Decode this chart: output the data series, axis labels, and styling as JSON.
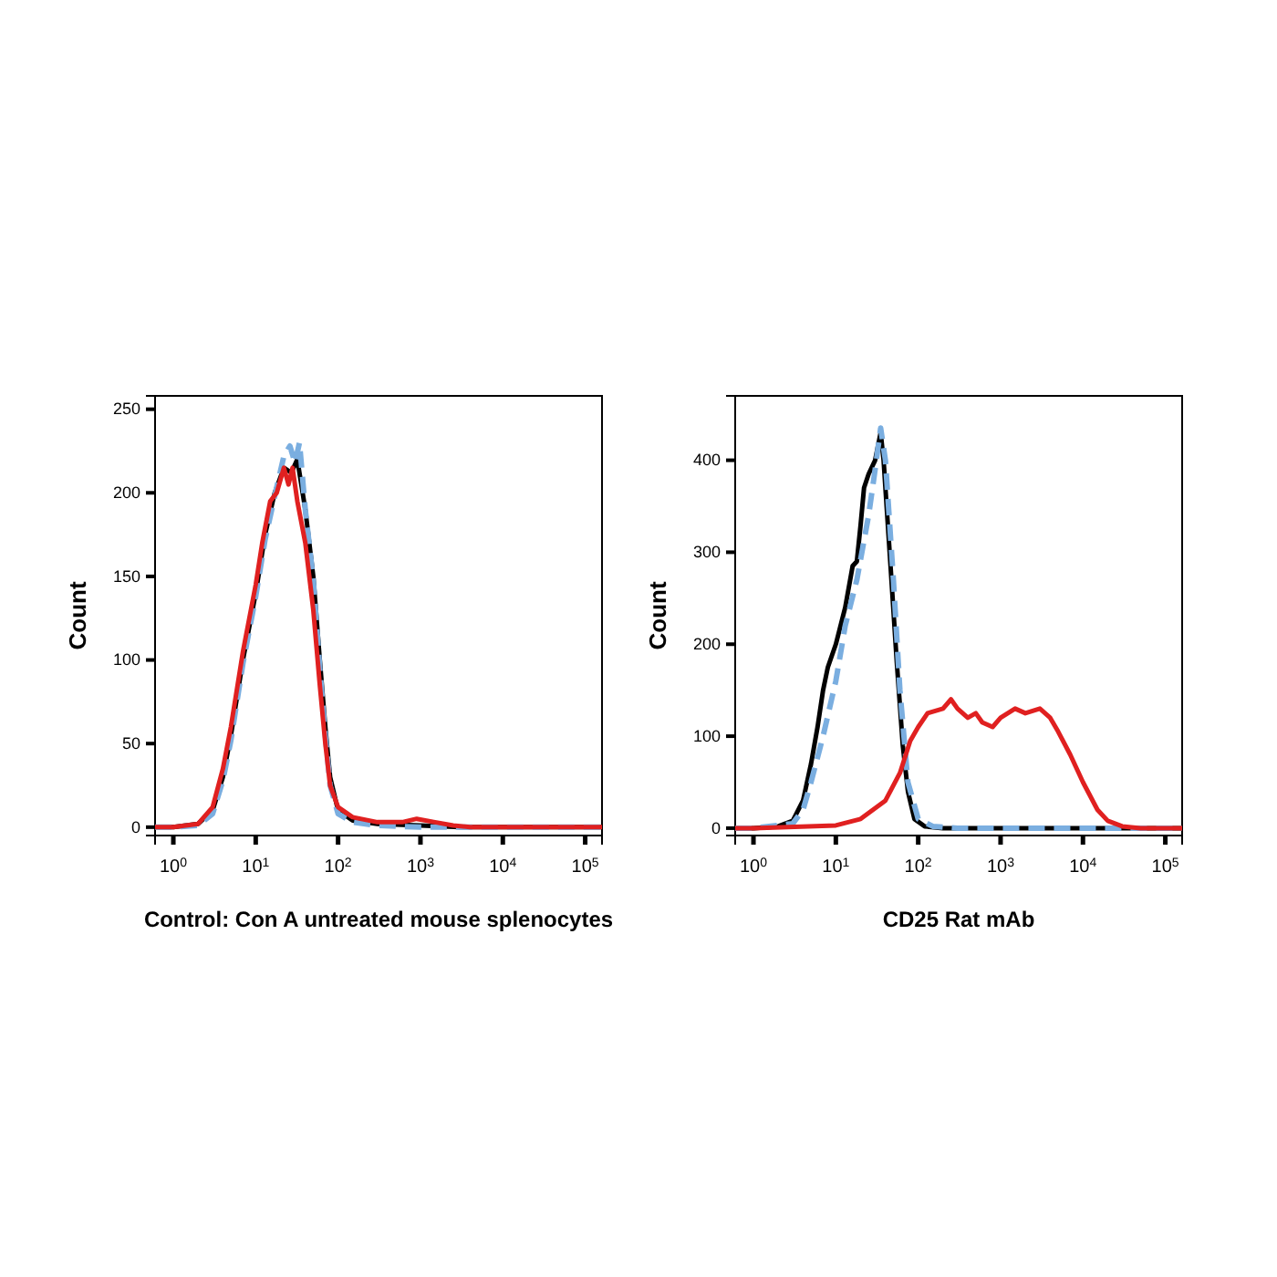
{
  "chart_data": [
    {
      "type": "line",
      "xlabel": "Control: Con A untreated mouse splenocytes",
      "ylabel": "Count",
      "log": "x",
      "xlim": [
        0.6,
        160000
      ],
      "ylim": [
        -5,
        258
      ],
      "xticks": [
        {
          "value": 1,
          "label": "10$^{0}$"
        },
        {
          "value": 10,
          "label": "10$^{1}$"
        },
        {
          "value": 100,
          "label": "10$^{2}$"
        },
        {
          "value": 1000,
          "label": "10$^{3}$"
        },
        {
          "value": 10000,
          "label": "10$^{4}$"
        },
        {
          "value": 100000,
          "label": "10$^{5}$"
        }
      ],
      "yticks": [
        0,
        50,
        100,
        150,
        200,
        250
      ],
      "grid": false,
      "series": [
        {
          "color": "#000000",
          "line_style": "solid",
          "x": [
            0.6,
            1,
            2,
            3,
            4,
            5,
            7,
            10,
            13,
            17,
            22,
            27,
            32,
            40,
            50,
            60,
            70,
            80,
            100,
            150,
            300,
            1000,
            3000,
            160000
          ],
          "values": [
            0,
            0,
            2,
            10,
            30,
            55,
            100,
            140,
            175,
            200,
            215,
            212,
            220,
            190,
            150,
            100,
            60,
            30,
            10,
            4,
            2,
            1,
            0,
            0
          ]
        },
        {
          "color": "#7aaee0",
          "line_style": "dashed",
          "x": [
            0.6,
            1,
            2,
            3,
            4,
            5,
            7,
            10,
            13,
            17,
            22,
            26,
            30,
            34,
            40,
            50,
            60,
            70,
            80,
            100,
            150,
            300,
            1000,
            3000,
            160000
          ],
          "values": [
            0,
            0,
            1,
            8,
            28,
            52,
            98,
            138,
            172,
            198,
            222,
            228,
            218,
            230,
            190,
            148,
            95,
            55,
            25,
            8,
            3,
            1,
            0,
            0,
            0
          ]
        },
        {
          "color": "#e02020",
          "line_style": "solid",
          "x": [
            0.6,
            1,
            2,
            3,
            4,
            5,
            7,
            10,
            12,
            15,
            18,
            22,
            25,
            28,
            32,
            40,
            50,
            60,
            70,
            80,
            100,
            150,
            300,
            600,
            900,
            1500,
            2500,
            4000,
            160000
          ],
          "values": [
            0,
            0,
            2,
            12,
            35,
            60,
            105,
            145,
            170,
            195,
            200,
            215,
            205,
            215,
            195,
            170,
            130,
            85,
            50,
            25,
            12,
            6,
            3,
            3,
            5,
            3,
            1,
            0,
            0
          ]
        }
      ]
    },
    {
      "type": "line",
      "xlabel": "CD25 Rat mAb",
      "ylabel": "Count",
      "log": "x",
      "xlim": [
        0.6,
        160000
      ],
      "ylim": [
        -8,
        470
      ],
      "xticks": [
        {
          "value": 1,
          "label": "10$^{0}$"
        },
        {
          "value": 10,
          "label": "10$^{1}$"
        },
        {
          "value": 100,
          "label": "10$^{2}$"
        },
        {
          "value": 1000,
          "label": "10$^{3}$"
        },
        {
          "value": 10000,
          "label": "10$^{4}$"
        },
        {
          "value": 100000,
          "label": "10$^{5}$"
        }
      ],
      "yticks": [
        0,
        100,
        200,
        300,
        400
      ],
      "grid": false,
      "series": [
        {
          "color": "#000000",
          "line_style": "solid",
          "x": [
            0.6,
            1,
            2,
            3,
            4,
            5,
            6,
            7,
            8,
            10,
            13,
            16,
            18,
            20,
            22,
            25,
            30,
            35,
            38,
            45,
            55,
            65,
            75,
            90,
            120,
            200,
            160000
          ],
          "values": [
            0,
            0,
            2,
            8,
            30,
            70,
            110,
            150,
            175,
            200,
            240,
            285,
            290,
            330,
            370,
            385,
            400,
            430,
            400,
            300,
            180,
            90,
            40,
            10,
            2,
            0,
            0
          ]
        },
        {
          "color": "#7aaee0",
          "line_style": "dashed",
          "x": [
            0.6,
            1,
            3,
            4,
            5,
            7,
            10,
            13,
            18,
            25,
            30,
            35,
            40,
            50,
            60,
            75,
            100,
            150,
            300,
            160000
          ],
          "values": [
            0,
            0,
            5,
            20,
            50,
            100,
            160,
            220,
            270,
            340,
            390,
            435,
            400,
            270,
            150,
            50,
            10,
            2,
            0,
            0
          ]
        },
        {
          "color": "#e02020",
          "line_style": "solid",
          "x": [
            0.6,
            1,
            10,
            20,
            40,
            60,
            80,
            100,
            130,
            200,
            250,
            300,
            400,
            500,
            600,
            800,
            1000,
            1500,
            2000,
            3000,
            4000,
            5000,
            7000,
            10000,
            15000,
            20000,
            30000,
            50000,
            160000
          ],
          "values": [
            0,
            0,
            3,
            10,
            30,
            60,
            95,
            110,
            125,
            130,
            140,
            130,
            120,
            125,
            115,
            110,
            120,
            130,
            125,
            130,
            120,
            105,
            80,
            50,
            20,
            8,
            2,
            0,
            0
          ]
        }
      ]
    }
  ]
}
